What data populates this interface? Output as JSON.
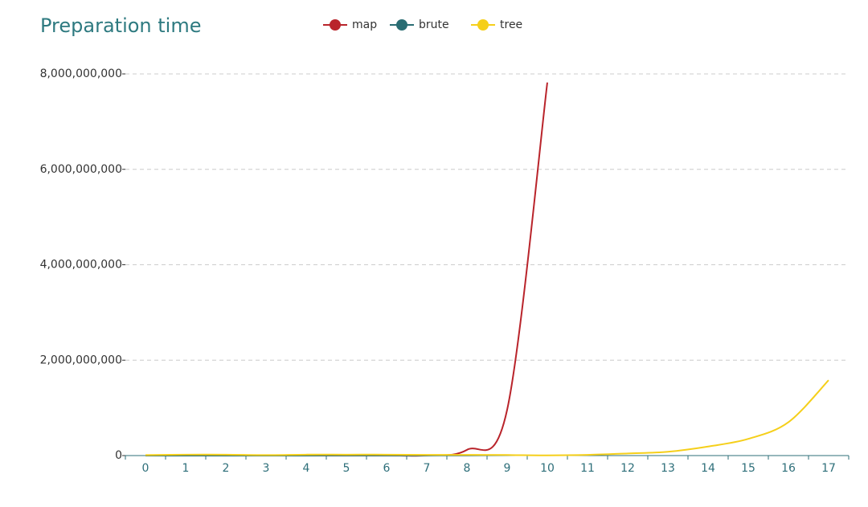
{
  "chart_data": {
    "type": "line",
    "title": "Preparation time",
    "categories": [
      "0",
      "1",
      "2",
      "3",
      "4",
      "5",
      "6",
      "7",
      "8",
      "9",
      "10",
      "11",
      "12",
      "13",
      "14",
      "15",
      "16",
      "17"
    ],
    "series": [
      {
        "name": "map",
        "color": "#b9242b",
        "values": [
          1000000,
          2000000,
          2000000,
          1000000,
          2000000,
          2000000,
          3000000,
          5000000,
          120000000,
          960000000,
          7820000000,
          null,
          null,
          null,
          null,
          null,
          null,
          null
        ]
      },
      {
        "name": "brute",
        "color": "#2a6d73",
        "values": [
          1000000,
          1000000,
          1000000,
          1000000,
          1000000,
          2000000,
          2000000,
          3000000,
          5000000,
          8000000,
          null,
          null,
          null,
          null,
          null,
          null,
          null,
          null
        ]
      },
      {
        "name": "tree",
        "color": "#f5cf1a",
        "values": [
          10000000,
          20000000,
          20000000,
          10000000,
          20000000,
          20000000,
          20000000,
          15000000,
          15000000,
          12000000,
          5000000,
          15000000,
          45000000,
          80000000,
          190000000,
          350000000,
          700000000,
          1580000000
        ]
      }
    ],
    "ylim": [
      0,
      8000000000
    ],
    "yticks": [
      0,
      {
        "value": 2000000000,
        "label": "2,000,000,000"
      },
      {
        "value": 4000000000,
        "label": "4,000,000,000"
      },
      {
        "value": 6000000000,
        "label": "6,000,000,000"
      },
      {
        "value": 8000000000,
        "label": "8,000,000,000"
      }
    ],
    "grid": true,
    "smooth": true,
    "legend": "top"
  }
}
